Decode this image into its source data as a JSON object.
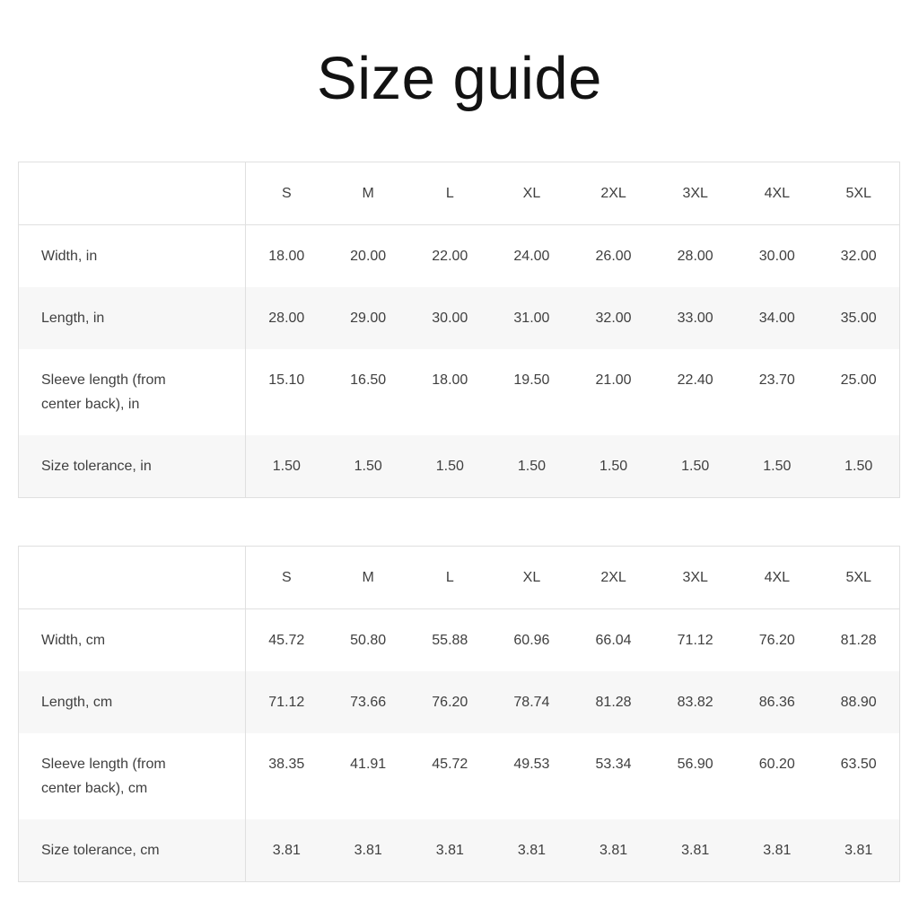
{
  "page": {
    "title": "Size guide"
  },
  "colors": {
    "stripe": "#f7f7f7",
    "border": "#e0e0e0",
    "text": "#3f3f3f",
    "title": "#121212"
  },
  "tables": [
    {
      "id": "inches",
      "size_headers": [
        "S",
        "M",
        "L",
        "XL",
        "2XL",
        "3XL",
        "4XL",
        "5XL"
      ],
      "rows": [
        {
          "label": "Width, in",
          "values": [
            "18.00",
            "20.00",
            "22.00",
            "24.00",
            "26.00",
            "28.00",
            "30.00",
            "32.00"
          ]
        },
        {
          "label": "Length, in",
          "values": [
            "28.00",
            "29.00",
            "30.00",
            "31.00",
            "32.00",
            "33.00",
            "34.00",
            "35.00"
          ]
        },
        {
          "label": "Sleeve length (from center back), in",
          "values": [
            "15.10",
            "16.50",
            "18.00",
            "19.50",
            "21.00",
            "22.40",
            "23.70",
            "25.00"
          ]
        },
        {
          "label": "Size tolerance, in",
          "values": [
            "1.50",
            "1.50",
            "1.50",
            "1.50",
            "1.50",
            "1.50",
            "1.50",
            "1.50"
          ]
        }
      ]
    },
    {
      "id": "centimeters",
      "size_headers": [
        "S",
        "M",
        "L",
        "XL",
        "2XL",
        "3XL",
        "4XL",
        "5XL"
      ],
      "rows": [
        {
          "label": "Width, cm",
          "values": [
            "45.72",
            "50.80",
            "55.88",
            "60.96",
            "66.04",
            "71.12",
            "76.20",
            "81.28"
          ]
        },
        {
          "label": "Length, cm",
          "values": [
            "71.12",
            "73.66",
            "76.20",
            "78.74",
            "81.28",
            "83.82",
            "86.36",
            "88.90"
          ]
        },
        {
          "label": "Sleeve length (from center back), cm",
          "values": [
            "38.35",
            "41.91",
            "45.72",
            "49.53",
            "53.34",
            "56.90",
            "60.20",
            "63.50"
          ]
        },
        {
          "label": "Size tolerance, cm",
          "values": [
            "3.81",
            "3.81",
            "3.81",
            "3.81",
            "3.81",
            "3.81",
            "3.81",
            "3.81"
          ]
        }
      ]
    }
  ]
}
